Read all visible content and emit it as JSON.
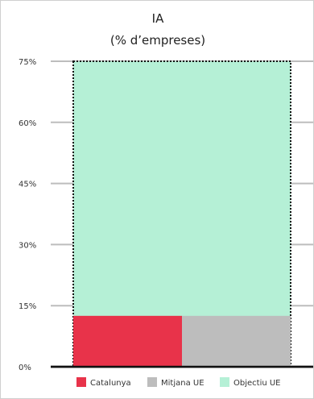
{
  "chart_data": {
    "type": "bar",
    "title": "IA",
    "subtitle": "(% d’empreses)",
    "y_ticks": [
      "0%",
      "15%",
      "30%",
      "45%",
      "60%",
      "75%"
    ],
    "ylim": [
      0,
      75
    ],
    "grid": true,
    "legend_position": "bottom",
    "series": [
      {
        "name": "Catalunya",
        "value": 12.5,
        "color": "#e8334a"
      },
      {
        "name": "Mitjana UE",
        "value": 12.5,
        "color": "#bdbdbd"
      },
      {
        "name": "Objectiu UE",
        "value": 75,
        "color": "#b5f0d6"
      }
    ]
  }
}
